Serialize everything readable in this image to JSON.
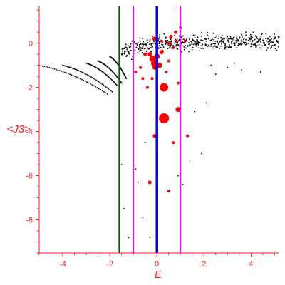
{
  "chart_data": {
    "type": "scatter",
    "title": "",
    "xlabel": "E",
    "ylabel": "<J3>",
    "xlim": [
      -5,
      5.2
    ],
    "ylim": [
      -9.5,
      1.7
    ],
    "xticks": [
      -4,
      -2,
      0,
      2,
      4
    ],
    "yticks": [
      0,
      -2,
      -4,
      -6,
      -8
    ],
    "grid": false,
    "colors": {
      "axis": "#ff1a1a",
      "black_points": "#000000",
      "red_points": "#ff0000",
      "line_green": "#006400",
      "line_magenta": "#ff00ff",
      "line_blue": "#0000ff"
    },
    "vertical_lines": [
      {
        "x": -1.6,
        "color": "#006400"
      },
      {
        "x": -1.0,
        "color": "#ff00ff"
      },
      {
        "x": 0.0,
        "color": "#0000ff"
      },
      {
        "x": 1.0,
        "color": "#ff00ff"
      }
    ],
    "black_series": {
      "branches": [
        {
          "x_start": -5.0,
          "x_end": -2.1,
          "y_start": -1.0,
          "y_end": -2.3
        },
        {
          "x_start": -4.0,
          "x_end": -1.9,
          "y_start": -1.0,
          "y_end": -2.2
        },
        {
          "x_start": -3.0,
          "x_end": -1.7,
          "y_start": -0.9,
          "y_end": -1.9
        },
        {
          "x_start": -2.5,
          "x_end": -1.5,
          "y_start": -0.8,
          "y_end": -1.8
        },
        {
          "x_start": -2.0,
          "x_end": -1.3,
          "y_start": -0.6,
          "y_end": -1.6
        }
      ],
      "band": {
        "x_start": -1.5,
        "x_end": 5.2,
        "y_low": -0.4,
        "y_high": 0.5
      },
      "tail_points": [
        {
          "x": -1.5,
          "y": -5.5
        },
        {
          "x": -1.4,
          "y": -7.5
        },
        {
          "x": -1.2,
          "y": -8.8
        },
        {
          "x": -0.9,
          "y": -5.7
        },
        {
          "x": -0.8,
          "y": -6.3
        },
        {
          "x": -0.6,
          "y": -7.9
        },
        {
          "x": -0.5,
          "y": -4.5
        },
        {
          "x": 0.9,
          "y": -6.0
        },
        {
          "x": 1.1,
          "y": -6.4
        },
        {
          "x": 1.4,
          "y": -5.3
        },
        {
          "x": 1.6,
          "y": -3.1
        },
        {
          "x": 1.9,
          "y": -5.0
        },
        {
          "x": 2.1,
          "y": -2.7
        },
        {
          "x": -0.3,
          "y": -8.8
        },
        {
          "x": -1.0,
          "y": -8.6
        },
        {
          "x": 2.5,
          "y": -1.4
        },
        {
          "x": 3.0,
          "y": -1.1
        },
        {
          "x": 3.6,
          "y": -1.2
        },
        {
          "x": 4.4,
          "y": -1.3
        },
        {
          "x": 2.3,
          "y": -1.0
        },
        {
          "x": 3.3,
          "y": -0.9
        }
      ]
    },
    "red_series": [
      {
        "x": -0.2,
        "y": -0.7,
        "size": 4
      },
      {
        "x": 0.0,
        "y": -0.6,
        "size": 4
      },
      {
        "x": -0.1,
        "y": -0.9,
        "size": 5
      },
      {
        "x": 0.1,
        "y": -1.0,
        "size": 4
      },
      {
        "x": -0.3,
        "y": -0.5,
        "size": 3
      },
      {
        "x": 0.2,
        "y": -0.4,
        "size": 3
      },
      {
        "x": 0.0,
        "y": -0.2,
        "size": 2.5
      },
      {
        "x": -0.1,
        "y": -1.1,
        "size": 3
      },
      {
        "x": 0.3,
        "y": -2.0,
        "size": 6
      },
      {
        "x": 0.3,
        "y": -3.4,
        "size": 7
      },
      {
        "x": 0.9,
        "y": -3.0,
        "size": 3.5
      },
      {
        "x": -0.1,
        "y": 0.2,
        "size": 3
      },
      {
        "x": 0.6,
        "y": 0.3,
        "size": 2.5
      },
      {
        "x": 0.8,
        "y": 0.5,
        "size": 2.5
      },
      {
        "x": 0.5,
        "y": 0.0,
        "size": 2.5
      },
      {
        "x": -0.5,
        "y": -0.5,
        "size": 2.5
      },
      {
        "x": -0.7,
        "y": -1.1,
        "size": 2
      },
      {
        "x": -0.9,
        "y": -1.3,
        "size": 2
      },
      {
        "x": -0.6,
        "y": -1.6,
        "size": 2
      },
      {
        "x": 0.4,
        "y": -1.3,
        "size": 2
      },
      {
        "x": 0.5,
        "y": -0.8,
        "size": 2
      },
      {
        "x": 0.7,
        "y": -0.2,
        "size": 2
      },
      {
        "x": 1.2,
        "y": 0.1,
        "size": 2
      },
      {
        "x": 1.0,
        "y": 0.7,
        "size": 2
      },
      {
        "x": -0.3,
        "y": -6.3,
        "size": 2.5
      },
      {
        "x": 0.5,
        "y": -6.7,
        "size": 2
      },
      {
        "x": 0.7,
        "y": -4.5,
        "size": 2
      },
      {
        "x": -0.1,
        "y": -4.2,
        "size": 2.5
      },
      {
        "x": 1.3,
        "y": -4.2,
        "size": 2
      },
      {
        "x": 0.9,
        "y": -1.8,
        "size": 2
      },
      {
        "x": -0.2,
        "y": -1.6,
        "size": 2
      },
      {
        "x": -0.4,
        "y": -2.0,
        "size": 2
      },
      {
        "x": 0.2,
        "y": 0.1,
        "size": 2
      },
      {
        "x": 0.8,
        "y": 0.1,
        "size": 2
      }
    ]
  }
}
